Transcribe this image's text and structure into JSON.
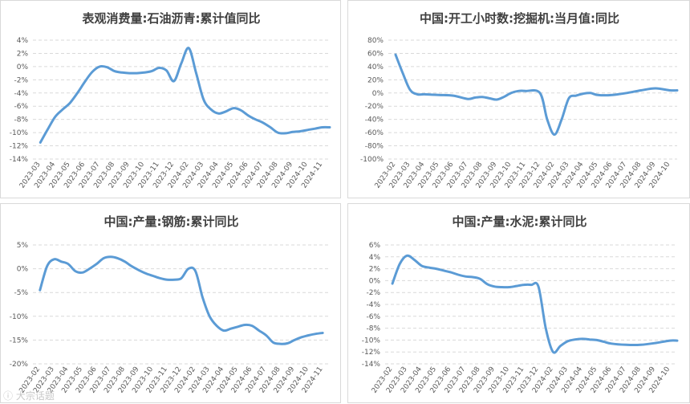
{
  "chart_data": [
    {
      "type": "line",
      "title": "表观消费量:石油沥青:累计值同比",
      "ylim": [
        -14,
        4
      ],
      "yticks": [
        4,
        2,
        0,
        -2,
        -4,
        -6,
        -8,
        -10,
        -12,
        -14
      ],
      "ytick_labels": [
        "4%",
        "2%",
        "0%",
        "-2%",
        "-4%",
        "-6%",
        "-8%",
        "-10%",
        "-12%",
        "-14%"
      ],
      "categories": [
        "2023-03",
        "2023-04",
        "2023-05",
        "2023-06",
        "2023-07",
        "2023-08",
        "2023-09",
        "2023-10",
        "2023-11",
        "2023-12",
        "2024-02",
        "2024-03",
        "2024-04",
        "2024-05",
        "2024-06",
        "2024-07",
        "2024-08",
        "2024-09",
        "2024-10",
        "2024-11"
      ],
      "x": [
        0,
        0.5,
        1,
        1.5,
        2,
        2.5,
        3,
        3.5,
        4,
        4.5,
        5,
        5.5,
        6,
        6.5,
        7,
        7.5,
        8,
        8.5,
        9,
        9.5,
        10,
        10.5,
        11,
        11.5,
        12,
        12.5,
        13,
        13.5,
        14,
        14.5,
        15,
        15.5,
        16,
        16.5,
        17,
        17.5,
        18,
        18.5,
        19,
        19.5
      ],
      "values": [
        -11.5,
        -9.5,
        -7.6,
        -6.5,
        -5.5,
        -4,
        -2.3,
        -0.8,
        0,
        -0.1,
        -0.7,
        -0.9,
        -1,
        -1,
        -0.9,
        -0.7,
        -0.2,
        -0.6,
        -2.2,
        0.5,
        2.8,
        -1,
        -5,
        -6.5,
        -7.1,
        -6.8,
        -6.3,
        -6.6,
        -7.4,
        -8,
        -8.5,
        -9.2,
        -10,
        -10.1,
        -9.9,
        -9.8,
        -9.6,
        -9.4,
        -9.2,
        -9.2
      ]
    },
    {
      "type": "line",
      "title": "中国:开工小时数:挖掘机:当月值:同比",
      "ylim": [
        -100,
        80
      ],
      "yticks": [
        80,
        60,
        40,
        20,
        0,
        -20,
        -40,
        -60,
        -80,
        -100
      ],
      "ytick_labels": [
        "80%",
        "60%",
        "40%",
        "20%",
        "0%",
        "-20%",
        "-40%",
        "-60%",
        "-80%",
        "-100%"
      ],
      "categories": [
        "2023-02",
        "2023-03",
        "2023-04",
        "2023-05",
        "2023-06",
        "2023-07",
        "2023-08",
        "2023-09",
        "2023-10",
        "2023-11",
        "2023-12",
        "2024-02",
        "2024-03",
        "2024-04",
        "2024-05",
        "2024-06",
        "2024-07",
        "2024-08",
        "2024-09",
        "2024-10"
      ],
      "x": [
        0,
        0.5,
        1,
        1.5,
        2,
        3,
        4,
        5,
        5.5,
        6,
        6.5,
        7,
        7.5,
        8,
        8.5,
        9,
        10,
        10.5,
        11,
        11.5,
        12,
        12.5,
        13,
        13.5,
        14,
        15,
        16,
        17,
        18,
        19,
        19.5
      ],
      "values": [
        58,
        30,
        5,
        -2,
        -2,
        -3,
        -4,
        -9,
        -7,
        -6,
        -8,
        -10,
        -6,
        0,
        3,
        3,
        0,
        -40,
        -63,
        -40,
        -8,
        -4,
        -1,
        0,
        -3,
        -3,
        0,
        4,
        7,
        4,
        4
      ]
    },
    {
      "type": "line",
      "title": "中国:产量:钢筋:累计同比",
      "ylim": [
        -20,
        5
      ],
      "yticks": [
        5,
        0,
        -5,
        -10,
        -15,
        -20
      ],
      "ytick_labels": [
        "5%",
        "0%",
        "-5%",
        "-10%",
        "-15%",
        "-20%"
      ],
      "categories": [
        "2023-02",
        "2023-03",
        "2023-04",
        "2023-05",
        "2023-06",
        "2023-07",
        "2023-08",
        "2023-09",
        "2023-10",
        "2023-11",
        "2023-12",
        "2024-02",
        "2024-03",
        "2024-04",
        "2024-05",
        "2024-06",
        "2024-07",
        "2024-08",
        "2024-09",
        "2024-10",
        "2024-11"
      ],
      "x": [
        0,
        0.5,
        1,
        1.5,
        2,
        2.5,
        3,
        3.5,
        4,
        4.5,
        5,
        5.5,
        6,
        6.5,
        7,
        7.5,
        8,
        8.5,
        9,
        9.5,
        10,
        10.5,
        11,
        11.5,
        12,
        12.5,
        13,
        13.5,
        14,
        14.5,
        15,
        15.5,
        16,
        16.5,
        17,
        17.5,
        18,
        18.5,
        19,
        19.5,
        20
      ],
      "values": [
        -4.5,
        0.5,
        2,
        1.5,
        1,
        -0.5,
        -0.8,
        0,
        1,
        2.2,
        2.5,
        2.2,
        1.5,
        0.5,
        -0.3,
        -1,
        -1.5,
        -2,
        -2.3,
        -2.3,
        -2,
        0,
        -0.5,
        -6,
        -10,
        -12,
        -13,
        -12.6,
        -12.2,
        -11.8,
        -12,
        -13,
        -14,
        -15.5,
        -15.8,
        -15.7,
        -15,
        -14.4,
        -14,
        -13.7,
        -13.5
      ]
    },
    {
      "type": "line",
      "title": "中国:产量:水泥:累计同比",
      "ylim": [
        -14,
        6
      ],
      "yticks": [
        6,
        4,
        2,
        0,
        -2,
        -4,
        -6,
        -8,
        -10,
        -12,
        -14
      ],
      "ytick_labels": [
        "6%",
        "4%",
        "2%",
        "0%",
        "-2%",
        "-4%",
        "-6%",
        "-8%",
        "-10%",
        "-12%",
        "-14%"
      ],
      "categories": [
        "2023-02",
        "2023-03",
        "2023-04",
        "2023-05",
        "2023-06",
        "2023-07",
        "2023-08",
        "2023-09",
        "2023-10",
        "2023-11",
        "2023-12",
        "2024-02",
        "2024-03",
        "2024-04",
        "2024-05",
        "2024-06",
        "2024-07",
        "2024-08",
        "2024-09",
        "2024-10"
      ],
      "x": [
        0,
        0.5,
        1,
        1.5,
        2,
        2.5,
        3,
        3.5,
        4,
        4.5,
        5,
        5.5,
        6,
        6.5,
        7,
        7.5,
        8,
        8.5,
        9,
        9.5,
        10,
        10.5,
        11,
        11.5,
        12,
        12.5,
        13,
        13.5,
        14,
        14.5,
        15,
        16,
        17,
        18,
        19,
        19.5
      ],
      "values": [
        -0.5,
        2.8,
        4.2,
        3.5,
        2.5,
        2.2,
        2,
        1.7,
        1.4,
        1,
        0.7,
        0.6,
        0.3,
        -0.6,
        -1,
        -1.1,
        -1.1,
        -0.9,
        -0.7,
        -0.7,
        -1,
        -8,
        -12,
        -11,
        -10.2,
        -9.9,
        -9.8,
        -9.9,
        -10,
        -10.3,
        -10.6,
        -10.8,
        -10.8,
        -10.5,
        -10.1,
        -10.1
      ]
    }
  ],
  "watermark": "ⓘ 大宗话题"
}
